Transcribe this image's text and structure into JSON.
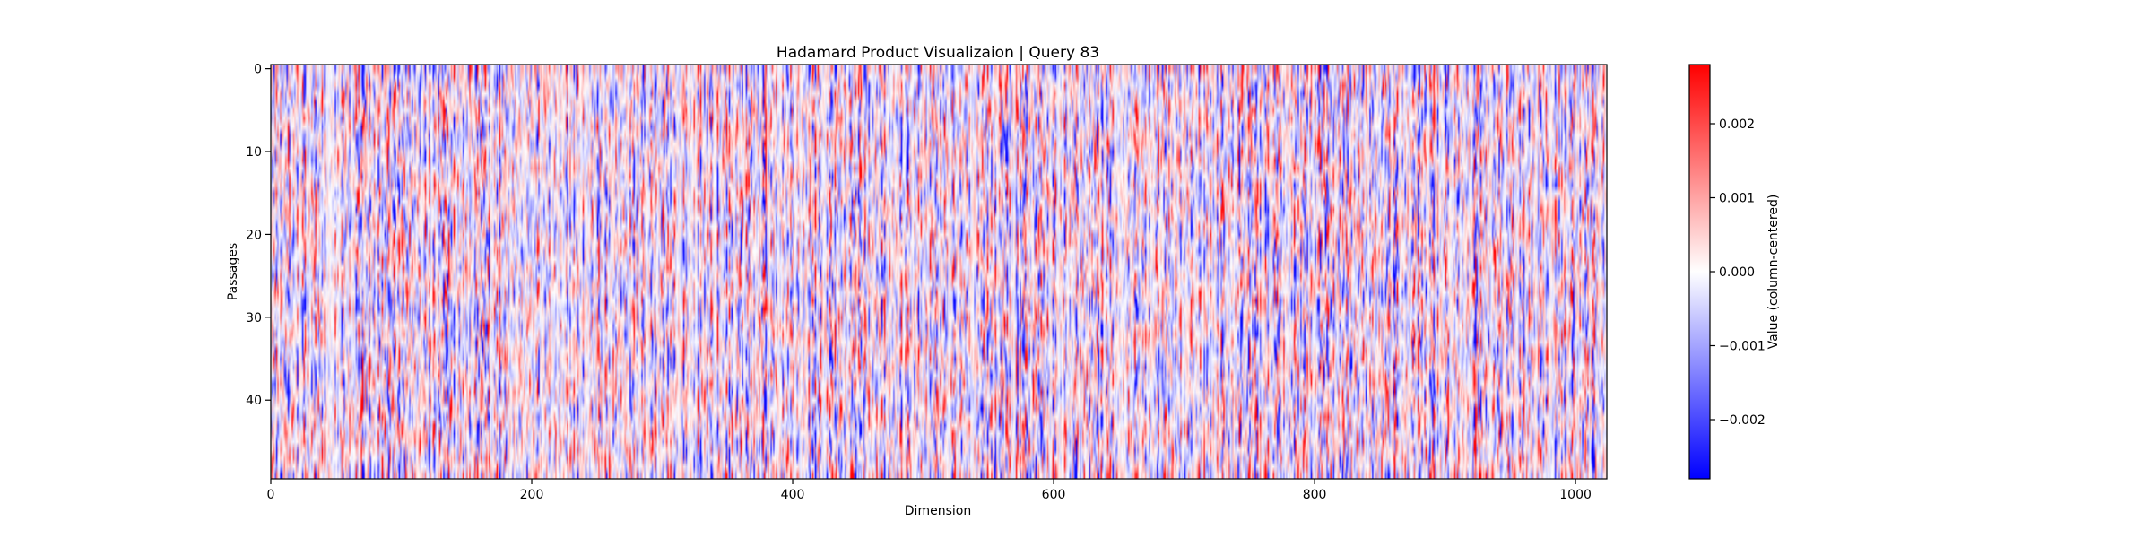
{
  "chart_data": {
    "type": "heatmap",
    "title": "Hadamard Product Visualizaion | Query 83",
    "xlabel": "Dimension",
    "ylabel": "Passages",
    "xlim": [
      0,
      1024
    ],
    "ylim": [
      0,
      50
    ],
    "y_inverted": true,
    "x_ticks": [
      0,
      200,
      400,
      600,
      800,
      1000
    ],
    "y_ticks": [
      0,
      10,
      20,
      30,
      40
    ],
    "n_rows": 50,
    "n_cols": 1024,
    "colormap": "bwr",
    "colormap_colors": [
      "#0000ff",
      "#ffffff",
      "#ff0000"
    ],
    "value_range": [
      -0.0028,
      0.0028
    ],
    "colorbar": {
      "label": "Value (column-centered)",
      "ticks": [
        -0.002,
        -0.001,
        0.0,
        0.001,
        0.002
      ],
      "tick_labels": [
        "−0.002",
        "−0.001",
        "0.000",
        "0.001",
        "0.002"
      ]
    },
    "note": "values approximately zero-mean per column; high-frequency stripe texture"
  }
}
